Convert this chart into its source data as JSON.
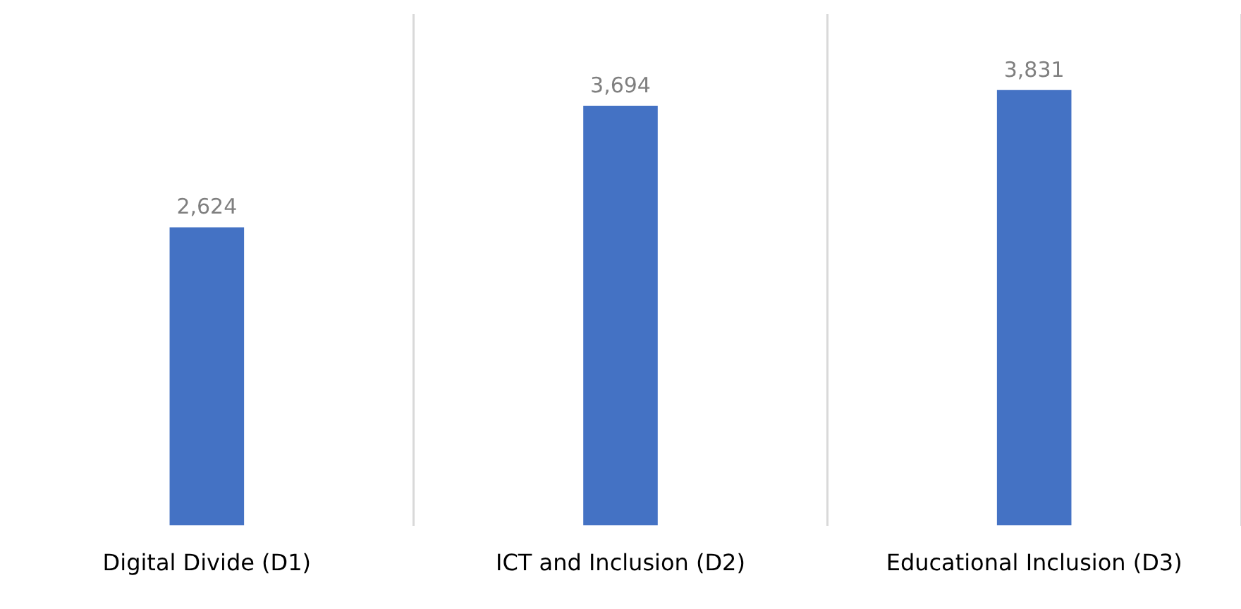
{
  "chart_data": {
    "type": "bar",
    "categories": [
      "Digital Divide (D1)",
      "ICT and Inclusion (D2)",
      "Educational Inclusion (D3)"
    ],
    "values": [
      2624,
      3694,
      3831
    ],
    "color": "#4472c4",
    "value_labels": [
      "2,624",
      "3,694",
      "3,831"
    ],
    "ylim": [
      0,
      4500
    ],
    "grid": "x",
    "legend": false,
    "tick_labels": "x"
  }
}
